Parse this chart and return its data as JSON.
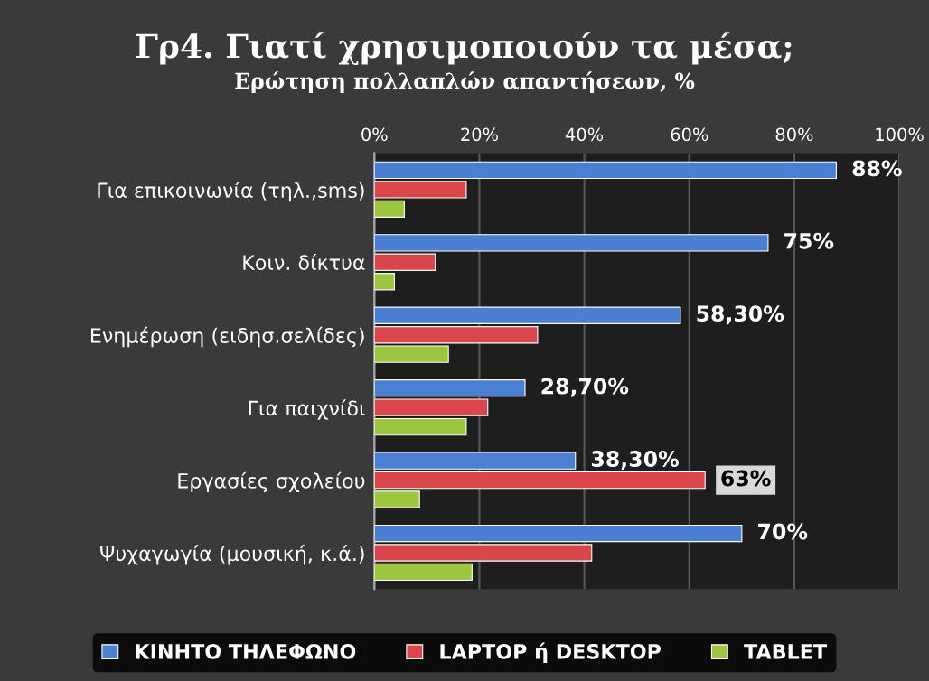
{
  "chart_data": {
    "type": "bar",
    "orientation": "horizontal",
    "title": "Γρ4. Γιατί χρησιμοποιούν τα μέσα;",
    "subtitle": "Ερώτηση πολλαπλών απαντήσεων, %",
    "categories": [
      "Για επικοινωνία (τηλ.,sms)",
      "Κοιν. δίκτυα",
      "Ενημέρωση (ειδησ.σελίδες)",
      "Για παιχνίδι",
      "Εργασίες σχολείου",
      "Ψυχαγωγία (μουσική, κ.ά.)"
    ],
    "series": [
      {
        "name": "ΚΙΝΗΤΟ ΤΗΛΕΦΩΝΟ",
        "color": "#4a7fd4",
        "values": [
          88,
          75,
          58.3,
          28.7,
          38.3,
          70
        ],
        "value_labels": [
          "88%",
          "75%",
          "58,30%",
          "28,70%",
          "38,30%",
          "70%"
        ]
      },
      {
        "name": "LAPTOP ή DESKTOP",
        "color": "#d9474a",
        "values": [
          17.5,
          11.6,
          31.1,
          21.6,
          63,
          41.4
        ],
        "value_labels": [
          null,
          null,
          null,
          null,
          "63%",
          null
        ]
      },
      {
        "name": "TABLET",
        "color": "#9cc63f",
        "values": [
          5.7,
          3.8,
          14.1,
          17.5,
          8.6,
          18.6
        ]
      }
    ],
    "xlim": [
      0,
      100
    ],
    "xticks": [
      {
        "value": 0,
        "label": "0%"
      },
      {
        "value": 20,
        "label": "20%"
      },
      {
        "value": 40,
        "label": "40%"
      },
      {
        "value": 60,
        "label": "60%"
      },
      {
        "value": 80,
        "label": "80%"
      },
      {
        "value": 100,
        "label": "100%"
      }
    ],
    "grid": "x",
    "legend": "bottom"
  }
}
